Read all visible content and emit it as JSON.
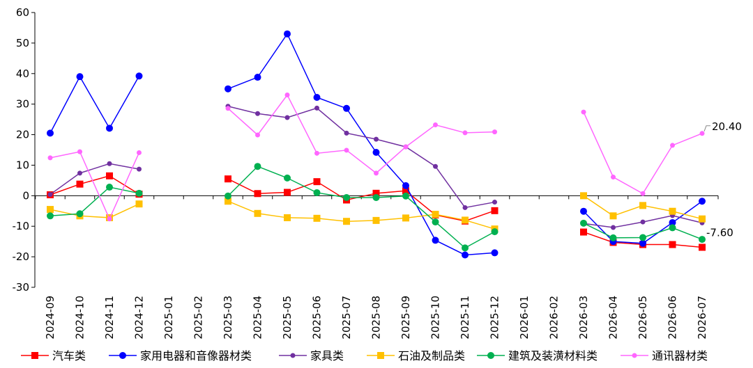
{
  "chart_data": {
    "type": "line",
    "categories": [
      "2024-09",
      "2024-10",
      "2024-11",
      "2024-12",
      "2025-01",
      "2025-02",
      "2025-03",
      "2025-04",
      "2025-05",
      "2025-06",
      "2025-07",
      "2025-08",
      "2025-09",
      "2025-10",
      "2025-11",
      "2025-12",
      "2026-01",
      "2026-02",
      "2026-03",
      "2026-04",
      "2026-05",
      "2026-06",
      "2026-07"
    ],
    "ylim": [
      -30,
      60
    ],
    "yticks": [
      -30,
      -20,
      -10,
      0,
      10,
      20,
      30,
      40,
      50,
      60
    ],
    "legend_position": "bottom",
    "series": [
      {
        "name": "汽车类",
        "color": "#ff0000",
        "marker": "square",
        "values": [
          0.3,
          3.8,
          6.5,
          0.5,
          null,
          null,
          5.5,
          0.7,
          1.1,
          4.6,
          -1.4,
          0.8,
          1.6,
          -6.3,
          -8.3,
          -4.9,
          null,
          null,
          -11.9,
          -15.3,
          -16.0,
          -16.0,
          -16.9
        ]
      },
      {
        "name": "家用电器和音像器材类",
        "color": "#0000ff",
        "marker": "circle",
        "values": [
          20.5,
          39.0,
          22.1,
          39.2,
          null,
          null,
          35.0,
          38.8,
          53.0,
          32.2,
          28.6,
          14.2,
          3.3,
          -14.6,
          -19.4,
          -18.7,
          null,
          null,
          -5.1,
          -15.0,
          -15.6,
          -8.8,
          -1.8
        ]
      },
      {
        "name": "家具类",
        "color": "#7030a0",
        "marker": "circle-small",
        "values": [
          0.4,
          7.4,
          10.5,
          8.7,
          null,
          null,
          29.3,
          26.9,
          25.6,
          28.7,
          20.5,
          18.5,
          16.0,
          9.6,
          -3.9,
          -2.1,
          null,
          null,
          -9.1,
          -10.4,
          -8.6,
          -6.5,
          -8.9
        ]
      },
      {
        "name": "石油及制品类",
        "color": "#ffc000",
        "marker": "square",
        "values": [
          -4.5,
          -6.6,
          -7.2,
          -2.7,
          null,
          null,
          -1.8,
          -5.8,
          -7.2,
          -7.4,
          -8.4,
          -8.1,
          -7.3,
          -6.1,
          -8.0,
          -10.9,
          null,
          null,
          0.0,
          -6.6,
          -3.2,
          -5.1,
          -7.6
        ]
      },
      {
        "name": "建筑及装潢材料类",
        "color": "#00b050",
        "marker": "circle",
        "values": [
          -6.6,
          -5.9,
          2.8,
          0.8,
          null,
          null,
          -0.1,
          9.6,
          5.8,
          1.0,
          -0.6,
          -0.6,
          -0.1,
          -8.6,
          -17.1,
          -11.8,
          null,
          null,
          -9.0,
          -13.8,
          -13.7,
          -10.5,
          -14.3
        ]
      },
      {
        "name": "通讯器材类",
        "color": "#ff66ff",
        "marker": "circle-small",
        "values": [
          12.4,
          14.4,
          -7.6,
          14.1,
          null,
          null,
          28.6,
          19.9,
          33.0,
          13.9,
          14.9,
          7.4,
          16.0,
          23.2,
          20.6,
          20.9,
          null,
          null,
          27.4,
          6.1,
          0.7,
          16.5,
          20.4
        ]
      }
    ],
    "data_labels": [
      {
        "series": 5,
        "index": 22,
        "text": "20.40"
      },
      {
        "series": 3,
        "index": 22,
        "text": "-7.60"
      }
    ]
  }
}
